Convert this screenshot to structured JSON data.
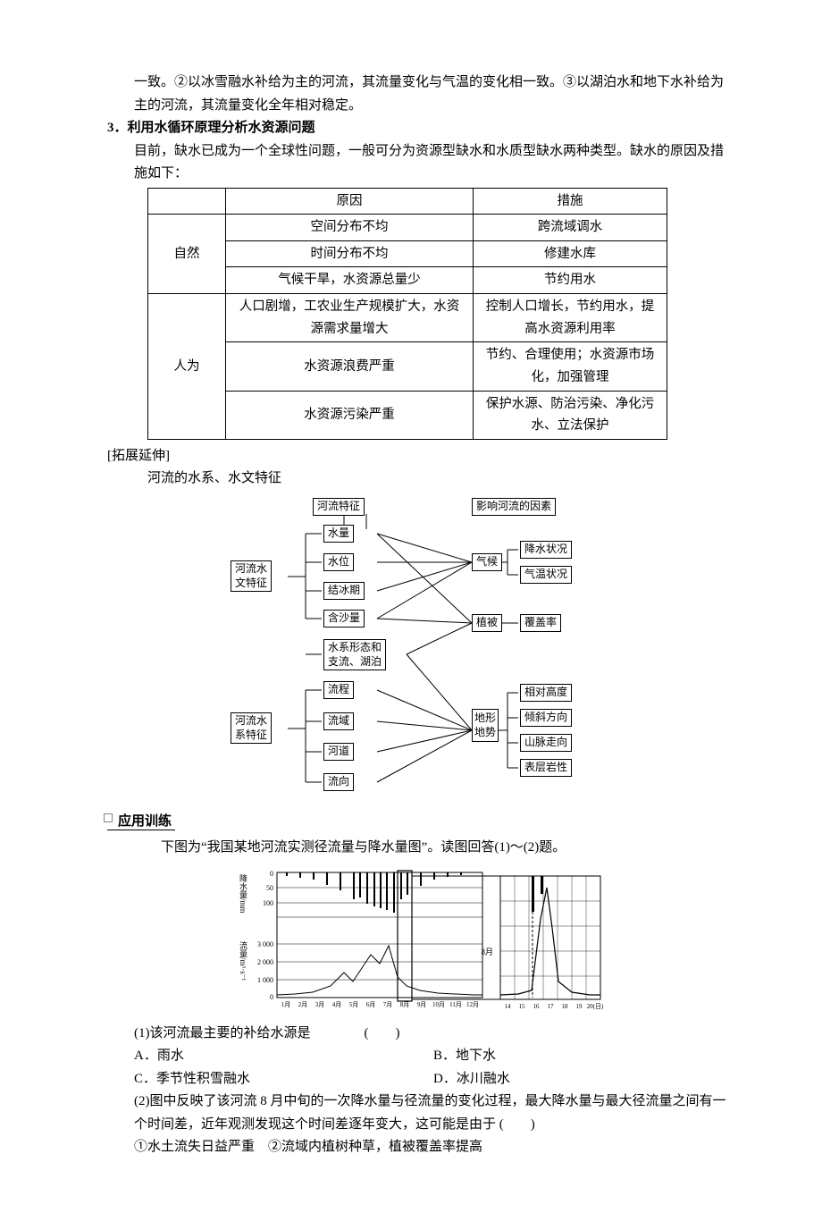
{
  "intro": {
    "line1": "一致。②以冰雪融水补给为主的河流，其流量变化与气温的变化相一致。③以湖泊水和地下水补给为主的河流，其流量变化全年相对稳定。"
  },
  "sec3": {
    "num": "3．",
    "title": "利用水循环原理分析水资源问题",
    "p1": "目前，缺水已成为一个全球性问题，一般可分为资源型缺水和水质型缺水两种类型。缺水的原因及措施如下：",
    "th1": "原因",
    "th2": "措施",
    "r1": "自然",
    "r1a": "空间分布不均",
    "r1am": "跨流域调水",
    "r1b": "时间分布不均",
    "r1bm": "修建水库",
    "r1c": "气候干旱，水资源总量少",
    "r1cm": "节约用水",
    "r2": "人为",
    "r2a": "人口剧增，工农业生产规模扩大，水资源需求量增大",
    "r2am": "控制人口增长，节约用水，提高水资源利用率",
    "r2b": "水资源浪费严重",
    "r2bm": "节约、合理使用；水资源市场化，加强管理",
    "r2c": "水资源污染严重",
    "r2cm": "保护水源、防治污染、净化污水、立法保护"
  },
  "ext": {
    "tag": "[拓展延伸]",
    "p": "河流的水系、水文特征"
  },
  "flow": {
    "top1": "河流特征",
    "top2": "影响河流的因素",
    "leftA": "河流水\n文特征",
    "leftB": "河流水\n系特征",
    "la": [
      "水量",
      "水位",
      "结冰期",
      "含沙量"
    ],
    "mid": "水系形态和\n支流、湖泊",
    "lb": [
      "流程",
      "流域",
      "河道",
      "流向"
    ],
    "right1": "气候",
    "right1sub": [
      "降水状况",
      "气温状况"
    ],
    "right2": "植被",
    "right2sub": "覆盖率",
    "right3": "地形\n地势",
    "right3sub": [
      "相对高度",
      "倾斜方向",
      "山脉走向",
      "表层岩性"
    ]
  },
  "practice": {
    "head": "应用训练",
    "intro": "下图为“我国某地河流实测径流量与降水量图”。读图回答(1)～(2)题。",
    "yl1": "降水量/mm",
    "yl2": "流量/m³·s⁻¹",
    "yticks_p": [
      "0",
      "50",
      "100"
    ],
    "yticks_f": [
      "3 000",
      "2 000",
      "1 000",
      "0"
    ],
    "xmonths": [
      "1月",
      "2月",
      "3月",
      "4月",
      "5月",
      "6月",
      "7月",
      "8月",
      "9月",
      "10月",
      "11月",
      "12月"
    ],
    "inset_label": "8月",
    "inset_x": [
      "14",
      "15",
      "16",
      "17",
      "18",
      "19",
      "20(日)"
    ],
    "q1": "(1)该河流最主要的补给水源是　　　　(　　)",
    "q1a": "A．雨水",
    "q1b": "B．地下水",
    "q1c": "C．季节性积雪融水",
    "q1d": "D．冰川融水",
    "q2": "(2)图中反映了该河流 8 月中旬的一次降水量与径流量的变化过程，最大降水量与最大径流量之间有一个时间差，近年观测发现这个时间差逐年变大，这可能是由于 (　　)",
    "q2opts": "①水土流失日益严重　②流域内植树种草，植被覆盖率提高"
  },
  "style": {
    "border": "#000",
    "grid": "#000"
  }
}
